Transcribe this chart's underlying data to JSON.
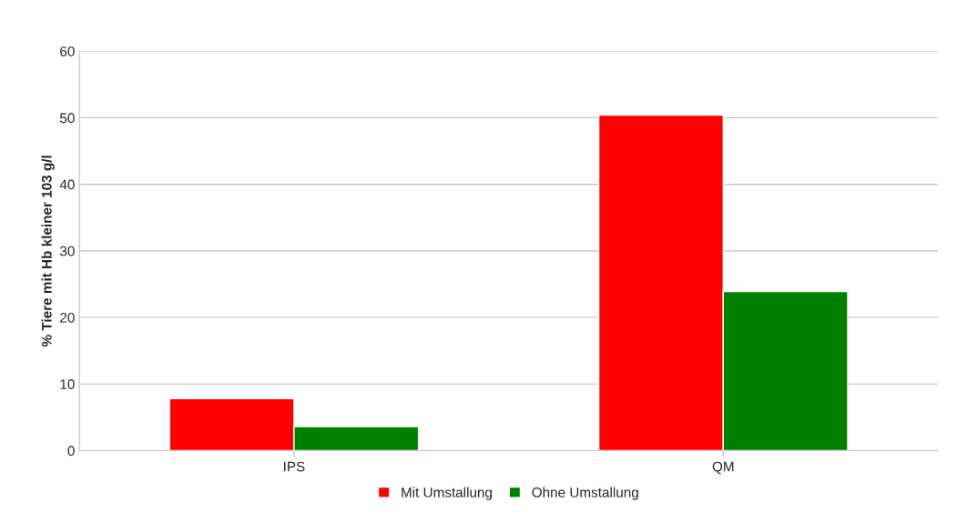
{
  "chart_data": {
    "type": "bar",
    "ylabel": "% Tiere mit Hb kleiner 103 g/l",
    "categories": [
      "IPS",
      "QM"
    ],
    "series": [
      {
        "name": "Mit Umstallung",
        "color": "#ff0000",
        "values": [
          7.8,
          50.4
        ]
      },
      {
        "name": "Ohne Umstallung",
        "color": "#008000",
        "values": [
          3.6,
          23.9
        ]
      }
    ],
    "ylim": [
      0,
      60
    ],
    "yticks": [
      0,
      10,
      20,
      30,
      40,
      50,
      60
    ],
    "grid": "y",
    "legend": "bottom"
  }
}
